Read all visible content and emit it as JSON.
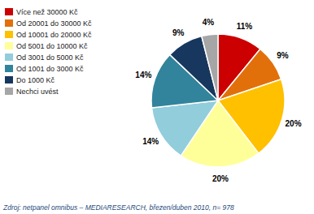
{
  "chart_data": {
    "type": "pie",
    "categories": [
      "Více než 30000 Kč",
      "Od 20001 do 30000 Kč",
      "Od 10001 do 20000 Kč",
      "Od 5001 do 10000 Kč",
      "Od 3001 do 5000 Kč",
      "Od 1001 do 3000 Kč",
      "Do 1000 Kč",
      "Nechci uvést"
    ],
    "values": [
      11,
      9,
      20,
      20,
      14,
      14,
      9,
      4
    ],
    "value_labels": [
      "11%",
      "9%",
      "20%",
      "20%",
      "14%",
      "14%",
      "9%",
      "4%"
    ],
    "colors": [
      "#CC0000",
      "#E2700A",
      "#FFC000",
      "#FFFF99",
      "#92CDDC",
      "#31849B",
      "#17375E",
      "#A6A6A6"
    ],
    "data_labels": true,
    "legend": "upper left",
    "annotations": [
      "Zdroj: netpanel omnibus – MEDIARESEARCH, březen/duben 2010, n= 978"
    ]
  }
}
